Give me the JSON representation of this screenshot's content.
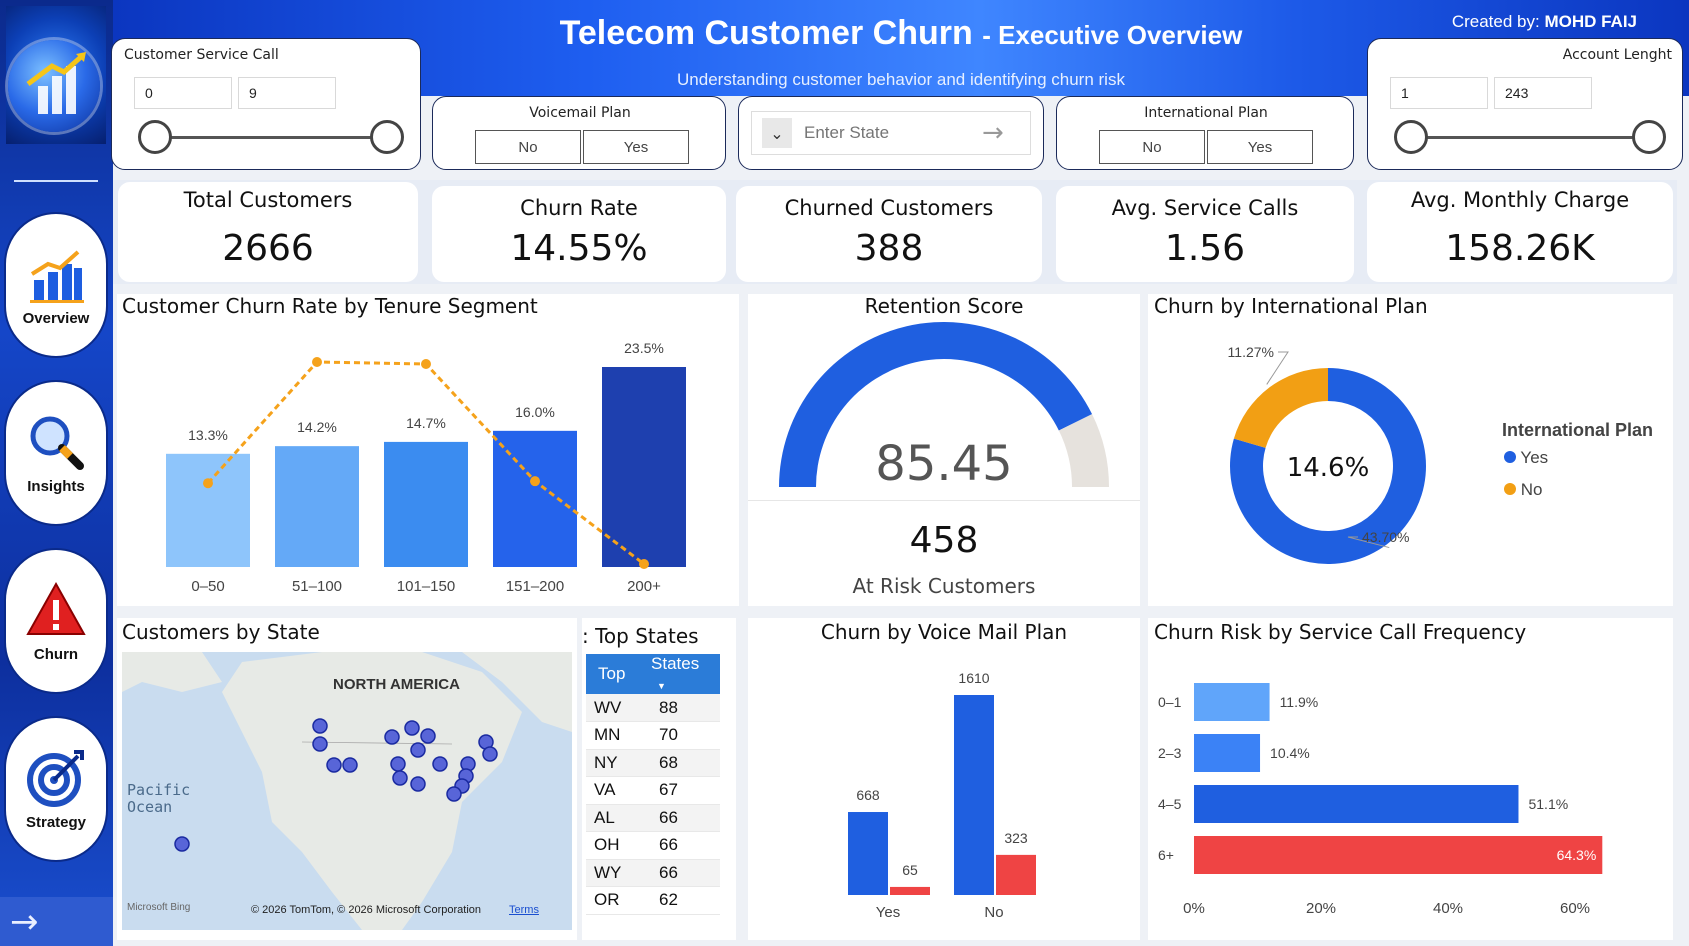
{
  "header": {
    "title": "Telecom Customer Churn",
    "title_suffix": "- Executive Overview",
    "subtitle": "Understanding customer behavior and identifying churn risk",
    "created_label": "Created by:",
    "created_name": "MOHD FAIJ"
  },
  "sidebar": {
    "items": [
      {
        "label": "Overview",
        "icon": "bar-chart-icon"
      },
      {
        "label": "Insights",
        "icon": "magnifier-icon"
      },
      {
        "label": "Churn",
        "icon": "warning-icon"
      },
      {
        "label": "Strategy",
        "icon": "target-icon"
      }
    ],
    "next_arrow": "→"
  },
  "slicers": {
    "service_call": {
      "title": "Customer Service Call",
      "min": "0",
      "max": "9"
    },
    "voicemail": {
      "title": "Voicemail Plan",
      "options": [
        "No",
        "Yes"
      ]
    },
    "state": {
      "placeholder": "Enter State"
    },
    "international": {
      "title": "International Plan",
      "options": [
        "No",
        "Yes"
      ]
    },
    "account_length": {
      "title": "Account Lenght",
      "min": "1",
      "max": "243"
    }
  },
  "kpis": [
    {
      "label": "Total Customers",
      "value": "2666"
    },
    {
      "label": "Churn Rate",
      "value": "14.55%"
    },
    {
      "label": "Churned Customers",
      "value": "388"
    },
    {
      "label": "Avg. Service Calls",
      "value": "1.56"
    },
    {
      "label": "Avg. Monthly Charge",
      "value": "158.26K"
    }
  ],
  "tenure_chart": {
    "title": "Customer Churn Rate by Tenure Segment",
    "chart_data": {
      "type": "bar",
      "categories": [
        "0–50",
        "51–100",
        "101–150",
        "151–200",
        "200+"
      ],
      "values": [
        13.3,
        14.2,
        14.7,
        16.0,
        23.5
      ],
      "value_labels": [
        "13.3%",
        "14.2%",
        "14.7%",
        "16.0%",
        "23.5%"
      ],
      "line_values": [
        0.4,
        1.0,
        0.99,
        0.41,
        0.0
      ],
      "colors": [
        "#8ec5fb",
        "#64a9f7",
        "#3b8cf0",
        "#2563eb",
        "#1e40af"
      ],
      "line_color": "#f5a21b"
    }
  },
  "retention": {
    "title": "Retention Score",
    "score": "85.45",
    "score_value": 85.45,
    "gauge_max": 100,
    "at_risk_value": "458",
    "at_risk_label": "At Risk Customers"
  },
  "intl_chart": {
    "title": "Churn by International Plan",
    "center_label": "14.6%",
    "legend_title": "International Plan",
    "chart_data": {
      "type": "pie",
      "slices": [
        {
          "name": "Yes",
          "label": "43.70%",
          "value": 43.7,
          "color": "#1f5fe0"
        },
        {
          "name": "No",
          "label": "11.27%",
          "value": 11.27,
          "color": "#f29f14"
        }
      ]
    }
  },
  "state_map": {
    "title": "Customers by State",
    "region_label": "NORTH AMERICA",
    "ocean_label": "Pacific Ocean",
    "attribution": "© 2026 TomTom, © 2026 Microsoft Corporation",
    "terms": "Terms",
    "bing": "Microsoft Bing"
  },
  "top_states": {
    "title": ": Top States",
    "columns": [
      "Top",
      "States"
    ],
    "rows": [
      {
        "state": "WV",
        "count": "88"
      },
      {
        "state": "MN",
        "count": "70"
      },
      {
        "state": "NY",
        "count": "68"
      },
      {
        "state": "VA",
        "count": "67"
      },
      {
        "state": "AL",
        "count": "66"
      },
      {
        "state": "OH",
        "count": "66"
      },
      {
        "state": "WY",
        "count": "66"
      },
      {
        "state": "OR",
        "count": "62"
      }
    ]
  },
  "voicemail_chart": {
    "title": "Churn by Voice Mail Plan",
    "chart_data": {
      "type": "bar",
      "categories": [
        "Yes",
        "No"
      ],
      "series": [
        {
          "values": [
            668,
            1610
          ],
          "color": "#1f5fe0"
        },
        {
          "values": [
            65,
            323
          ],
          "color": "#ef4444"
        }
      ],
      "ylim": [
        0,
        1700
      ]
    }
  },
  "service_chart": {
    "title": "Churn Risk by Service Call Frequency",
    "chart_data": {
      "type": "bar",
      "orientation": "horizontal",
      "categories": [
        "0–1",
        "2–3",
        "4–5",
        "6+"
      ],
      "values": [
        11.9,
        10.4,
        51.1,
        64.3
      ],
      "value_labels": [
        "11.9%",
        "10.4%",
        "51.1%",
        "64.3%"
      ],
      "colors": [
        "#60a5fa",
        "#3b82f6",
        "#1f5fe0",
        "#ef4444"
      ],
      "xticks": [
        "0%",
        "20%",
        "40%",
        "60%"
      ],
      "xlim": [
        0,
        60
      ]
    }
  }
}
